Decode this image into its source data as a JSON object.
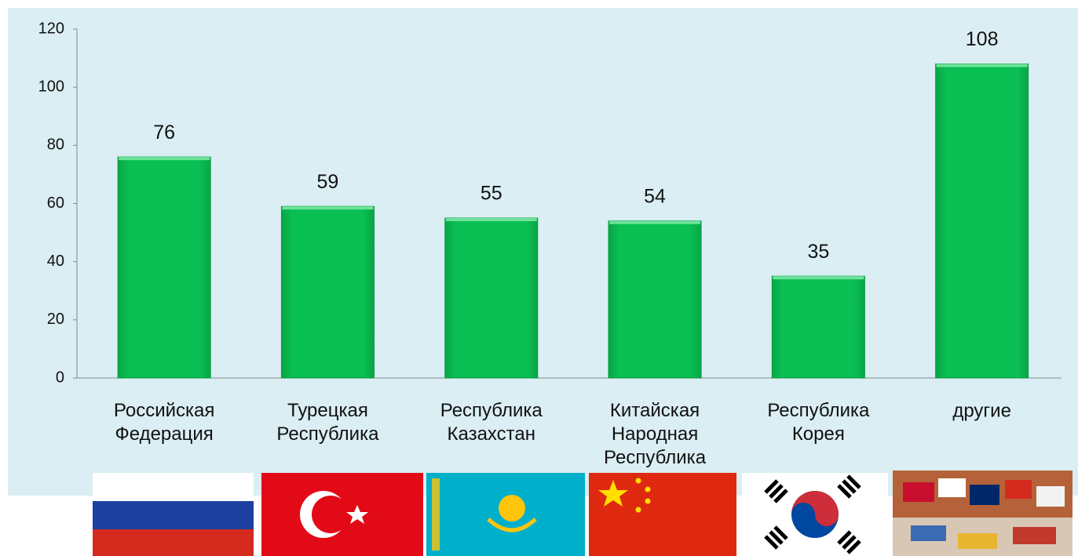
{
  "chart_data": {
    "type": "bar",
    "categories": [
      "Российская\nФедерация",
      "Турецкая\nРеспублика",
      "Республика\nКазахстан",
      "Китайская\nНародная\nРеспублика",
      "Республика\nКорея",
      "другие"
    ],
    "values": [
      76,
      59,
      55,
      54,
      35,
      108
    ],
    "color": "#0abf53",
    "ylim": [
      0,
      120
    ],
    "yticks": [
      0,
      20,
      40,
      60,
      80,
      100,
      120
    ],
    "grid": false
  }
}
